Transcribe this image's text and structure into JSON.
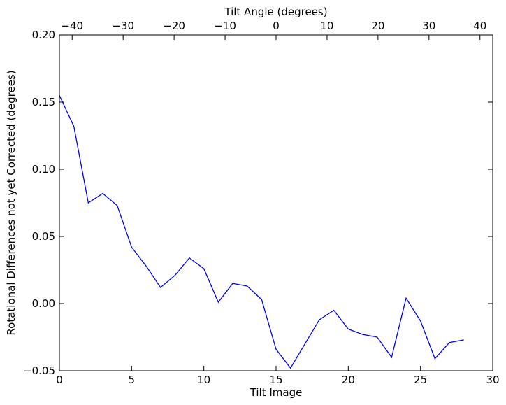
{
  "chart_data": {
    "type": "line",
    "title": "",
    "xlabel": "Tilt Image",
    "ylabel": "Rotational Differences not yet Corrected (degrees)",
    "top_xlabel": "Tilt Angle (degrees)",
    "xlim": [
      0,
      30
    ],
    "ylim": [
      -0.05,
      0.2
    ],
    "top_xlim": [
      -42.5,
      42.5
    ],
    "x_ticks": [
      0,
      5,
      10,
      15,
      20,
      25,
      30
    ],
    "x_tick_labels": [
      "0",
      "5",
      "10",
      "15",
      "20",
      "25",
      "30"
    ],
    "y_ticks": [
      -0.05,
      0.0,
      0.05,
      0.1,
      0.15,
      0.2
    ],
    "y_tick_labels": [
      "−0.05",
      "0.00",
      "0.05",
      "0.10",
      "0.15",
      "0.20"
    ],
    "top_ticks": [
      -40,
      -30,
      -20,
      -10,
      0,
      10,
      20,
      30,
      40
    ],
    "top_tick_labels": [
      "−40",
      "−30",
      "−20",
      "−10",
      "0",
      "10",
      "20",
      "30",
      "40"
    ],
    "grid": false,
    "series": [
      {
        "color": "#0000ff",
        "x": [
          0,
          1,
          2,
          3,
          4,
          5,
          6,
          7,
          8,
          9,
          10,
          11,
          12,
          13,
          14,
          15,
          16,
          17,
          18,
          19,
          20,
          21,
          22,
          23,
          24,
          25,
          26,
          27,
          28
        ],
        "values": [
          0.155,
          0.132,
          0.075,
          0.082,
          0.073,
          0.042,
          0.028,
          0.012,
          0.021,
          0.034,
          0.026,
          0.001,
          0.015,
          0.013,
          0.003,
          -0.034,
          -0.048,
          -0.03,
          -0.012,
          -0.005,
          -0.019,
          -0.023,
          -0.025,
          -0.04,
          0.004,
          -0.013,
          -0.041,
          -0.029,
          -0.027
        ]
      }
    ]
  }
}
